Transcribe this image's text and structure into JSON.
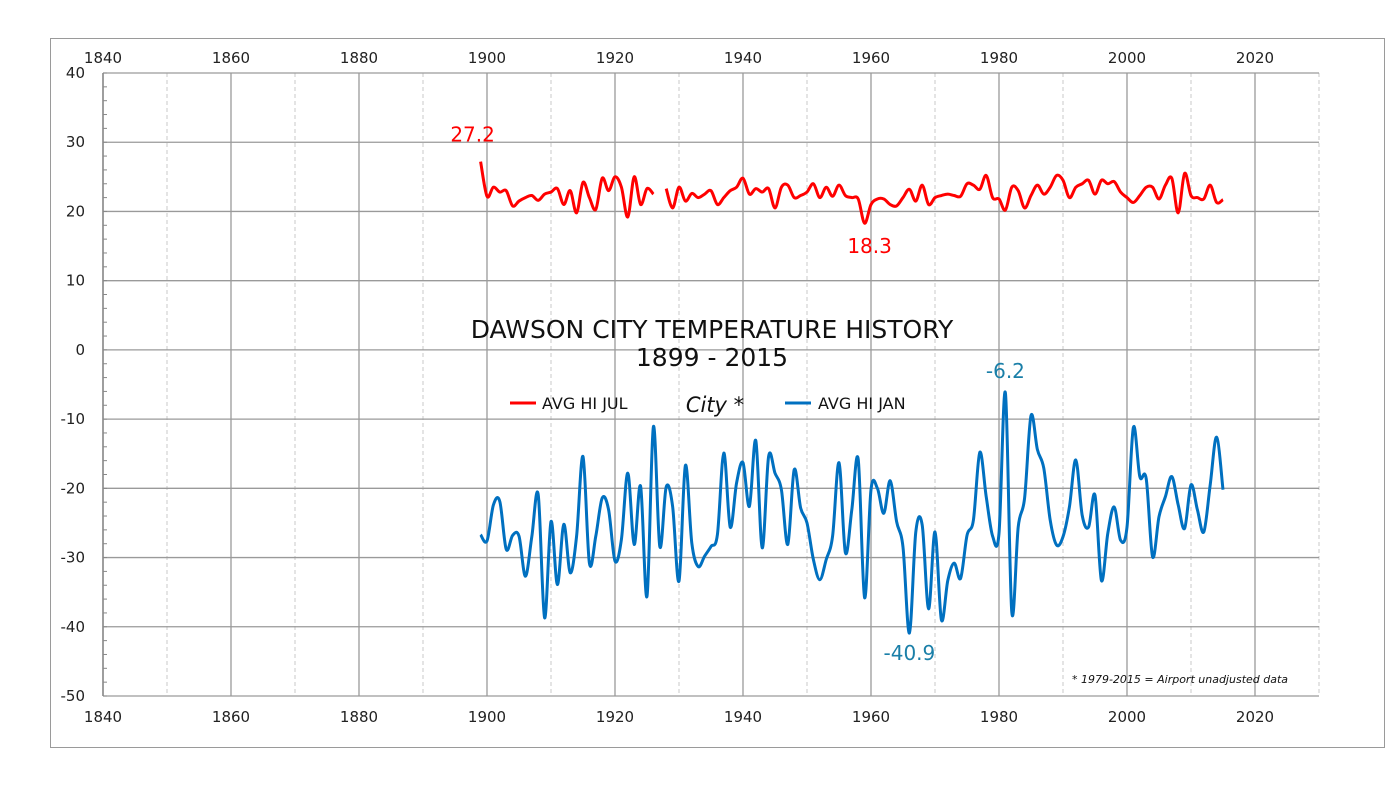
{
  "chart_data": {
    "type": "line",
    "title": "DAWSON CITY TEMPERATURE HISTORY",
    "subtitle": "1899 - 2015",
    "legend_note": "City *",
    "footnote": "* 1979-2015 = Airport unadjusted data",
    "xlim": [
      1840,
      2030
    ],
    "ylim": [
      -50,
      40
    ],
    "x_ticks": [
      1840,
      1860,
      1880,
      1900,
      1920,
      1940,
      1960,
      1980,
      2000,
      2020
    ],
    "y_ticks": [
      40,
      30,
      20,
      10,
      0,
      -10,
      -20,
      -30,
      -40,
      -50
    ],
    "grid": true,
    "legend_placement": "center",
    "x_start": 1899,
    "series": [
      {
        "name": "AVG HI JUL",
        "color": "#ff0000",
        "values": [
          27.2,
          22.2,
          23.5,
          22.8,
          23.0,
          20.8,
          21.5,
          22.0,
          22.3,
          21.6,
          22.5,
          22.8,
          23.3,
          21.0,
          23.0,
          19.8,
          24.2,
          22.0,
          20.3,
          24.8,
          23.0,
          25.0,
          23.5,
          19.2,
          25.0,
          21.0,
          23.3,
          22.5,
          null,
          23.3,
          20.5,
          23.5,
          21.5,
          22.6,
          22.0,
          22.5,
          23.0,
          21.0,
          22.0,
          23.0,
          23.5,
          24.8,
          22.5,
          23.3,
          22.8,
          23.3,
          20.5,
          23.5,
          23.8,
          22.0,
          22.3,
          22.8,
          24.0,
          22.0,
          23.5,
          22.2,
          23.8,
          22.3,
          22.0,
          21.8,
          18.3,
          21.0,
          21.8,
          21.8,
          21.0,
          20.8,
          22.0,
          23.2,
          21.5,
          23.8,
          21.0,
          22.0,
          22.3,
          22.5,
          22.3,
          22.2,
          24.0,
          23.8,
          23.2,
          25.2,
          22.0,
          21.8,
          20.2,
          23.5,
          23.0,
          20.5,
          22.3,
          23.8,
          22.5,
          23.5,
          25.2,
          24.5,
          22.0,
          23.5,
          24.0,
          24.5,
          22.5,
          24.5,
          24.0,
          24.3,
          22.8,
          22.0,
          21.3,
          22.3,
          23.5,
          23.5,
          21.8,
          23.8,
          24.8,
          19.8,
          25.5,
          22.3,
          22.0,
          21.8,
          23.8,
          21.3,
          21.7
        ]
      },
      {
        "name": "AVG HI JAN",
        "color": "#0070c0",
        "values": [
          -26.7,
          -27.6,
          -22.4,
          -21.9,
          -28.8,
          -26.8,
          -26.9,
          -32.7,
          -27.0,
          -20.9,
          -38.7,
          -24.8,
          -33.9,
          -25.2,
          -32.2,
          -26.9,
          -15.4,
          -30.8,
          -26.9,
          -21.4,
          -23.1,
          -30.5,
          -27.4,
          -17.8,
          -28.1,
          -19.7,
          -35.6,
          -11.1,
          -28.4,
          -19.8,
          -22.6,
          -33.4,
          -16.7,
          -27.9,
          -31.3,
          -29.8,
          -28.4,
          -26.7,
          -14.9,
          -25.6,
          -19.2,
          -16.3,
          -22.6,
          -13.1,
          -28.6,
          -15.4,
          -17.8,
          -20.2,
          -28.1,
          -17.3,
          -22.8,
          -25.0,
          -30.3,
          -33.2,
          -30.3,
          -26.9,
          -16.3,
          -29.3,
          -23.1,
          -15.8,
          -35.8,
          -20.2,
          -20.0,
          -23.6,
          -18.9,
          -24.8,
          -28.5,
          -40.9,
          -26.3,
          -25.3,
          -37.4,
          -26.3,
          -39.0,
          -33.3,
          -30.8,
          -33.0,
          -26.8,
          -24.6,
          -14.8,
          -21.2,
          -26.9,
          -26.5,
          -6.2,
          -37.9,
          -25.6,
          -21.4,
          -9.5,
          -14.4,
          -17.1,
          -24.6,
          -28.2,
          -27.0,
          -22.7,
          -15.9,
          -23.9,
          -25.6,
          -21.0,
          -33.3,
          -26.5,
          -22.7,
          -27.5,
          -25.6,
          -11.2,
          -18.3,
          -18.6,
          -29.9,
          -24.1,
          -21.2,
          -18.3,
          -22.4,
          -25.8,
          -19.5,
          -23.1,
          -26.3,
          -19.5,
          -12.6,
          -20.2
        ]
      }
    ],
    "annotations": [
      {
        "text": "27.2",
        "x": 1899,
        "y": 27.2,
        "color": "#ff0000"
      },
      {
        "text": "18.3",
        "x": 1959,
        "y": 18.3,
        "color": "#ff0000"
      },
      {
        "text": "-6.2",
        "x": 1981,
        "y": -6.2,
        "color": "#1a7fa8"
      },
      {
        "text": "-40.9",
        "x": 1966,
        "y": -40.9,
        "color": "#1a7fa8"
      }
    ]
  }
}
